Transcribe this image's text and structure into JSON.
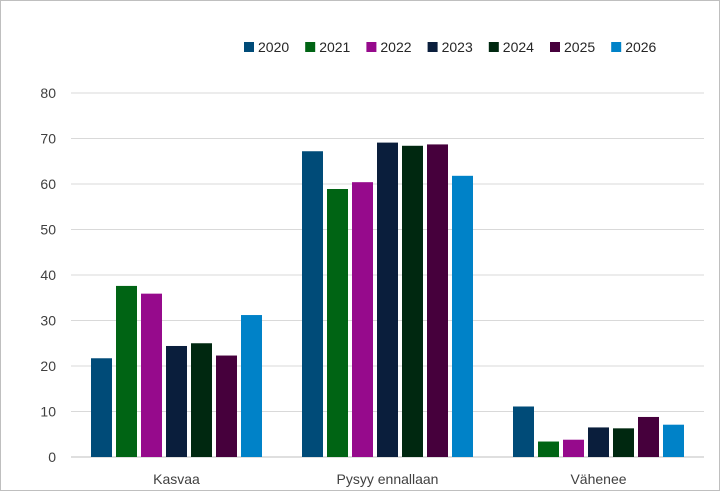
{
  "chart_data": {
    "type": "bar",
    "title": "",
    "xlabel": "",
    "ylabel": "",
    "categories": [
      "Kasvaa",
      "Pysyy ennallaan",
      "Vähenee"
    ],
    "ylim": [
      0,
      80
    ],
    "yticks": [
      0,
      10,
      20,
      30,
      40,
      50,
      60,
      70,
      80
    ],
    "grid": true,
    "legend_position": "top",
    "series": [
      {
        "name": "2020",
        "color": "#004b78",
        "values": [
          21.7,
          67.2,
          11.1
        ]
      },
      {
        "name": "2021",
        "color": "#006414",
        "values": [
          37.6,
          58.9,
          3.4
        ]
      },
      {
        "name": "2022",
        "color": "#960a8c",
        "values": [
          35.9,
          60.4,
          3.8
        ]
      },
      {
        "name": "2023",
        "color": "#0a1e3c",
        "values": [
          24.4,
          69.1,
          6.5
        ]
      },
      {
        "name": "2024",
        "color": "#002810",
        "values": [
          25.0,
          68.4,
          6.3
        ]
      },
      {
        "name": "2025",
        "color": "#46003c",
        "values": [
          22.3,
          68.7,
          8.8
        ]
      },
      {
        "name": "2026",
        "color": "#0082c8",
        "values": [
          31.2,
          61.8,
          7.1
        ]
      }
    ]
  }
}
